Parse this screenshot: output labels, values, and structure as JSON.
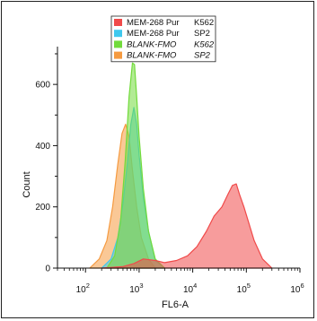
{
  "chart_data": {
    "type": "area",
    "title": "",
    "xlabel": "FL6-A",
    "ylabel": "Count",
    "x_scale": "log",
    "xlim": [
      30,
      1000000
    ],
    "ylim": [
      0,
      700
    ],
    "grid": false,
    "legend_position": "top-center",
    "x_ticks": [
      {
        "value": 100,
        "base": "10",
        "exp": "2"
      },
      {
        "value": 1000,
        "base": "10",
        "exp": "3"
      },
      {
        "value": 10000,
        "base": "10",
        "exp": "4"
      },
      {
        "value": 100000,
        "base": "10",
        "exp": "5"
      },
      {
        "value": 1000000,
        "base": "10",
        "exp": "6"
      }
    ],
    "y_ticks": [
      0,
      200,
      400,
      600
    ],
    "series": [
      {
        "name": "MEM-268  Pur    K562",
        "name_parts": [
          "MEM-268  Pur",
          "K562"
        ],
        "italic": false,
        "color": "#f04a4a",
        "x": [
          200,
          500,
          800,
          1200,
          2000,
          3000,
          5000,
          8000,
          12000,
          18000,
          25000,
          35000,
          45000,
          55000,
          65000,
          75000,
          90000,
          110000,
          140000,
          200000,
          300000
        ],
        "y": [
          0,
          5,
          15,
          30,
          25,
          18,
          25,
          40,
          70,
          120,
          170,
          200,
          240,
          270,
          275,
          240,
          200,
          150,
          90,
          30,
          0
        ]
      },
      {
        "name": "MEM-268  Pur    SP2",
        "name_parts": [
          "MEM-268  Pur",
          "SP2"
        ],
        "italic": false,
        "color": "#3fc8ee",
        "x": [
          200,
          300,
          400,
          500,
          600,
          700,
          800,
          900,
          1000,
          1200,
          1500,
          2000,
          3000
        ],
        "y": [
          0,
          30,
          100,
          210,
          340,
          470,
          525,
          470,
          370,
          230,
          120,
          25,
          0
        ]
      },
      {
        "name": "BLANK-FMO    K562",
        "name_parts": [
          "BLANK-FMO",
          "K562"
        ],
        "italic": true,
        "color": "#72db3c",
        "x": [
          250,
          350,
          450,
          550,
          650,
          750,
          820,
          900,
          1000,
          1200,
          1500,
          2000,
          3000
        ],
        "y": [
          0,
          40,
          150,
          350,
          560,
          670,
          665,
          560,
          430,
          260,
          120,
          30,
          0
        ]
      },
      {
        "name": "BLANK-FMO    SP2",
        "name_parts": [
          "BLANK-FMO",
          "SP2"
        ],
        "italic": true,
        "color": "#f59a40",
        "x": [
          120,
          180,
          250,
          320,
          400,
          480,
          560,
          650,
          750,
          900,
          1100,
          1500,
          2000
        ],
        "y": [
          0,
          30,
          90,
          200,
          340,
          440,
          470,
          430,
          320,
          200,
          100,
          30,
          0
        ]
      }
    ]
  }
}
